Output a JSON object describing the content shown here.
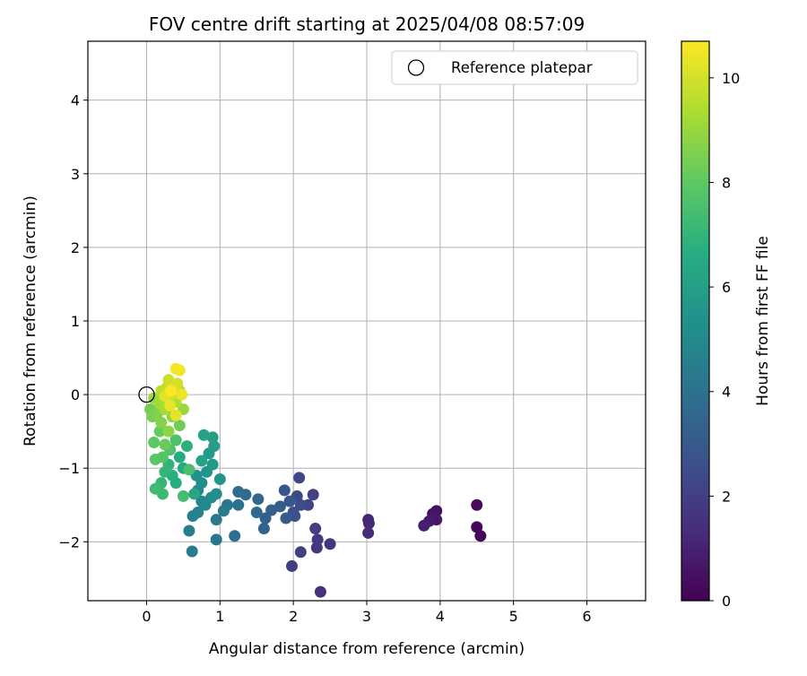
{
  "chart_data": {
    "type": "scatter",
    "title": "FOV centre drift starting at 2025/04/08 08:57:09",
    "xlabel": "Angular distance from reference (arcmin)",
    "ylabel": "Rotation from reference (arcmin)",
    "xlim": [
      -0.8,
      6.8
    ],
    "ylim": [
      -2.8,
      4.8
    ],
    "xticks": [
      "0",
      "1",
      "2",
      "3",
      "4",
      "5",
      "6"
    ],
    "yticks": [
      "−2",
      "−1",
      "0",
      "1",
      "2",
      "3",
      "4"
    ],
    "grid": true,
    "legend": {
      "placement": "top-right",
      "label": "Reference platepar"
    },
    "reference_point": {
      "x": 0,
      "y": 0
    },
    "colorbar": {
      "label": "Hours from first FF file",
      "range": [
        0,
        10.7
      ],
      "ticks": [
        "0",
        "2",
        "4",
        "6",
        "8",
        "10"
      ],
      "colormap": "viridis"
    },
    "points": [
      {
        "x": 4.55,
        "y": -1.92,
        "h": 0.1
      },
      {
        "x": 4.5,
        "y": -1.8,
        "h": 0.2
      },
      {
        "x": 4.5,
        "y": -1.5,
        "h": 0.3
      },
      {
        "x": 3.95,
        "y": -1.58,
        "h": 0.5
      },
      {
        "x": 3.9,
        "y": -1.62,
        "h": 0.6
      },
      {
        "x": 3.95,
        "y": -1.7,
        "h": 0.7
      },
      {
        "x": 3.85,
        "y": -1.72,
        "h": 0.8
      },
      {
        "x": 3.78,
        "y": -1.78,
        "h": 0.9
      },
      {
        "x": 3.02,
        "y": -1.7,
        "h": 1.1
      },
      {
        "x": 3.03,
        "y": -1.75,
        "h": 1.2
      },
      {
        "x": 3.02,
        "y": -1.88,
        "h": 1.3
      },
      {
        "x": 2.37,
        "y": -2.68,
        "h": 1.5
      },
      {
        "x": 2.5,
        "y": -2.03,
        "h": 1.6
      },
      {
        "x": 2.32,
        "y": -2.08,
        "h": 1.7
      },
      {
        "x": 2.33,
        "y": -1.97,
        "h": 1.8
      },
      {
        "x": 2.3,
        "y": -1.82,
        "h": 1.9
      },
      {
        "x": 2.1,
        "y": -2.14,
        "h": 1.95
      },
      {
        "x": 1.98,
        "y": -2.33,
        "h": 2.0
      },
      {
        "x": 2.27,
        "y": -1.36,
        "h": 2.1
      },
      {
        "x": 2.2,
        "y": -1.5,
        "h": 2.2
      },
      {
        "x": 2.08,
        "y": -1.13,
        "h": 2.3
      },
      {
        "x": 2.05,
        "y": -1.38,
        "h": 2.4
      },
      {
        "x": 2.1,
        "y": -1.5,
        "h": 2.5
      },
      {
        "x": 2.0,
        "y": -1.6,
        "h": 2.6
      },
      {
        "x": 2.02,
        "y": -1.65,
        "h": 2.7
      },
      {
        "x": 1.88,
        "y": -1.3,
        "h": 2.8
      },
      {
        "x": 1.95,
        "y": -1.45,
        "h": 2.9
      },
      {
        "x": 1.9,
        "y": -1.68,
        "h": 3.0
      },
      {
        "x": 1.82,
        "y": -1.52,
        "h": 3.1
      },
      {
        "x": 1.7,
        "y": -1.57,
        "h": 3.2
      },
      {
        "x": 1.62,
        "y": -1.68,
        "h": 3.3
      },
      {
        "x": 1.6,
        "y": -1.82,
        "h": 3.4
      },
      {
        "x": 1.52,
        "y": -1.42,
        "h": 3.5
      },
      {
        "x": 1.5,
        "y": -1.6,
        "h": 3.6
      },
      {
        "x": 1.35,
        "y": -1.36,
        "h": 3.7
      },
      {
        "x": 1.25,
        "y": -1.32,
        "h": 3.8
      },
      {
        "x": 1.2,
        "y": -1.92,
        "h": 3.9
      },
      {
        "x": 1.25,
        "y": -1.5,
        "h": 4.0
      },
      {
        "x": 1.1,
        "y": -1.5,
        "h": 4.1
      },
      {
        "x": 0.95,
        "y": -1.97,
        "h": 4.2
      },
      {
        "x": 0.95,
        "y": -1.7,
        "h": 4.3
      },
      {
        "x": 1.05,
        "y": -1.58,
        "h": 4.35
      },
      {
        "x": 0.62,
        "y": -2.13,
        "h": 4.4
      },
      {
        "x": 0.58,
        "y": -1.85,
        "h": 4.5
      },
      {
        "x": 0.63,
        "y": -1.65,
        "h": 4.6
      },
      {
        "x": 0.7,
        "y": -1.6,
        "h": 4.7
      },
      {
        "x": 0.75,
        "y": -1.45,
        "h": 4.8
      },
      {
        "x": 0.7,
        "y": -1.3,
        "h": 4.9
      },
      {
        "x": 0.8,
        "y": -1.5,
        "h": 5.0
      },
      {
        "x": 0.88,
        "y": -1.4,
        "h": 5.1
      },
      {
        "x": 0.95,
        "y": -1.35,
        "h": 5.2
      },
      {
        "x": 0.75,
        "y": -1.2,
        "h": 5.3
      },
      {
        "x": 0.68,
        "y": -1.1,
        "h": 5.4
      },
      {
        "x": 0.82,
        "y": -1.05,
        "h": 5.5
      },
      {
        "x": 1.0,
        "y": -1.15,
        "h": 5.6
      },
      {
        "x": 0.9,
        "y": -0.95,
        "h": 5.7
      },
      {
        "x": 0.85,
        "y": -0.8,
        "h": 5.8
      },
      {
        "x": 0.92,
        "y": -0.7,
        "h": 5.9
      },
      {
        "x": 0.9,
        "y": -0.58,
        "h": 6.0
      },
      {
        "x": 0.78,
        "y": -0.55,
        "h": 6.1
      },
      {
        "x": 0.75,
        "y": -0.9,
        "h": 6.2
      },
      {
        "x": 0.65,
        "y": -1.35,
        "h": 6.3
      },
      {
        "x": 0.5,
        "y": -1.0,
        "h": 6.4
      },
      {
        "x": 0.45,
        "y": -0.85,
        "h": 6.5
      },
      {
        "x": 0.4,
        "y": -1.2,
        "h": 6.6
      },
      {
        "x": 0.35,
        "y": -1.1,
        "h": 6.7
      },
      {
        "x": 0.55,
        "y": -0.7,
        "h": 6.8
      },
      {
        "x": 0.3,
        "y": -0.95,
        "h": 6.9
      },
      {
        "x": 0.25,
        "y": -1.05,
        "h": 7.0
      },
      {
        "x": 0.2,
        "y": -1.2,
        "h": 7.1
      },
      {
        "x": 0.22,
        "y": -1.35,
        "h": 7.2
      },
      {
        "x": 0.12,
        "y": -1.28,
        "h": 7.3
      },
      {
        "x": 0.5,
        "y": -1.38,
        "h": 7.4
      },
      {
        "x": 0.58,
        "y": -1.02,
        "h": 7.5
      },
      {
        "x": 0.4,
        "y": -0.62,
        "h": 7.6
      },
      {
        "x": 0.32,
        "y": -0.75,
        "h": 7.7
      },
      {
        "x": 0.22,
        "y": -0.85,
        "h": 7.8
      },
      {
        "x": 0.12,
        "y": -0.88,
        "h": 7.9
      },
      {
        "x": 0.1,
        "y": -0.65,
        "h": 8.0
      },
      {
        "x": 0.18,
        "y": -0.5,
        "h": 8.1
      },
      {
        "x": 0.25,
        "y": -0.68,
        "h": 8.2
      },
      {
        "x": 0.45,
        "y": -0.42,
        "h": 8.3
      },
      {
        "x": 0.05,
        "y": -0.2,
        "h": 8.4
      },
      {
        "x": 0.08,
        "y": -0.3,
        "h": 8.5
      },
      {
        "x": 0.15,
        "y": -0.25,
        "h": 8.6
      },
      {
        "x": 0.2,
        "y": -0.38,
        "h": 8.7
      },
      {
        "x": 0.3,
        "y": -0.5,
        "h": 8.8
      },
      {
        "x": 0.35,
        "y": -0.3,
        "h": 8.9
      },
      {
        "x": 0.5,
        "y": -0.2,
        "h": 9.0
      },
      {
        "x": 0.1,
        "y": -0.05,
        "h": 9.1
      },
      {
        "x": 0.18,
        "y": -0.12,
        "h": 9.2
      },
      {
        "x": 0.25,
        "y": -0.2,
        "h": 9.3
      },
      {
        "x": 0.4,
        "y": -0.1,
        "h": 9.4
      },
      {
        "x": 0.45,
        "y": 0.05,
        "h": 9.5
      },
      {
        "x": 0.2,
        "y": 0.05,
        "h": 9.6
      },
      {
        "x": 0.28,
        "y": 0.1,
        "h": 9.7
      },
      {
        "x": 0.35,
        "y": 0.0,
        "h": 9.8
      },
      {
        "x": 0.3,
        "y": 0.2,
        "h": 9.9
      },
      {
        "x": 0.42,
        "y": 0.15,
        "h": 10.0
      },
      {
        "x": 0.35,
        "y": 0.08,
        "h": 10.1
      },
      {
        "x": 0.25,
        "y": -0.02,
        "h": 10.2
      },
      {
        "x": 0.4,
        "y": -0.28,
        "h": 10.3
      },
      {
        "x": 0.32,
        "y": -0.15,
        "h": 10.35
      },
      {
        "x": 0.48,
        "y": 0.0,
        "h": 10.4
      },
      {
        "x": 0.45,
        "y": 0.33,
        "h": 10.5
      },
      {
        "x": 0.4,
        "y": 0.35,
        "h": 10.6
      },
      {
        "x": 0.33,
        "y": 0.05,
        "h": 10.7
      }
    ]
  }
}
